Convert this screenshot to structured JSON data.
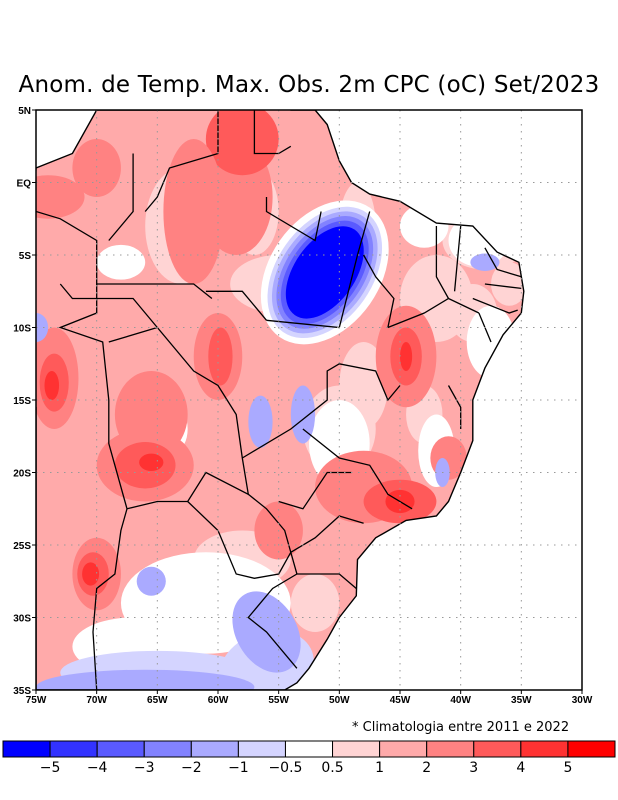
{
  "title": "Anom. de Temp. Max. Obs. 2m CPC (oC) Set/2023",
  "note": "* Climatologia entre 2011 e 2022",
  "chart_data": {
    "type": "heatmap",
    "title": "Anom. de Temp. Max. Obs. 2m CPC (oC) Set/2023",
    "variable": "Maximum 2m temperature anomaly",
    "units": "oC",
    "xlim": [
      -75,
      -30
    ],
    "ylim": [
      -35,
      5
    ],
    "x_ticks": [
      {
        "value": -75,
        "label": "75W"
      },
      {
        "value": -70,
        "label": "70W"
      },
      {
        "value": -65,
        "label": "65W"
      },
      {
        "value": -60,
        "label": "60W"
      },
      {
        "value": -55,
        "label": "55W"
      },
      {
        "value": -50,
        "label": "50W"
      },
      {
        "value": -45,
        "label": "45W"
      },
      {
        "value": -40,
        "label": "40W"
      },
      {
        "value": -35,
        "label": "35W"
      },
      {
        "value": -30,
        "label": "30W"
      }
    ],
    "y_ticks": [
      {
        "value": 5,
        "label": "5N"
      },
      {
        "value": 0,
        "label": "EQ"
      },
      {
        "value": -5,
        "label": "5S"
      },
      {
        "value": -10,
        "label": "10S"
      },
      {
        "value": -15,
        "label": "15S"
      },
      {
        "value": -20,
        "label": "20S"
      },
      {
        "value": -25,
        "label": "25S"
      },
      {
        "value": -30,
        "label": "30S"
      },
      {
        "value": -35,
        "label": "35S"
      }
    ],
    "grid": true,
    "colorbar": {
      "placement": "bottom",
      "labels": [
        "-5",
        "-4",
        "-3",
        "-2",
        "-1",
        "-0.5",
        "0.5",
        "1",
        "2",
        "3",
        "4",
        "5"
      ],
      "colors": [
        "#0000ff",
        "#3232ff",
        "#5a5aff",
        "#8282ff",
        "#aaaaff",
        "#d4d4ff",
        "#ffffff",
        "#ffd4d4",
        "#ffaaaa",
        "#ff8282",
        "#ff5a5a",
        "#ff3232",
        "#ff0000"
      ]
    },
    "features": [
      {
        "name": "strong negative anomaly",
        "lon": -51,
        "lat": -6,
        "value": -5
      },
      {
        "name": "positive anomaly max",
        "lon": -66,
        "lat": -19.5,
        "value": 4
      },
      {
        "name": "positive anomaly max",
        "lon": -73.5,
        "lat": -14,
        "value": 4
      },
      {
        "name": "positive anomaly max",
        "lon": -45,
        "lat": -22,
        "value": 4
      },
      {
        "name": "positive anomaly max",
        "lon": -70,
        "lat": -27,
        "value": 4
      },
      {
        "name": "positive anomaly max",
        "lon": -44.5,
        "lat": -12,
        "value": 4
      },
      {
        "name": "negative anomaly",
        "lon": -57,
        "lat": -32,
        "value": -2
      }
    ]
  }
}
